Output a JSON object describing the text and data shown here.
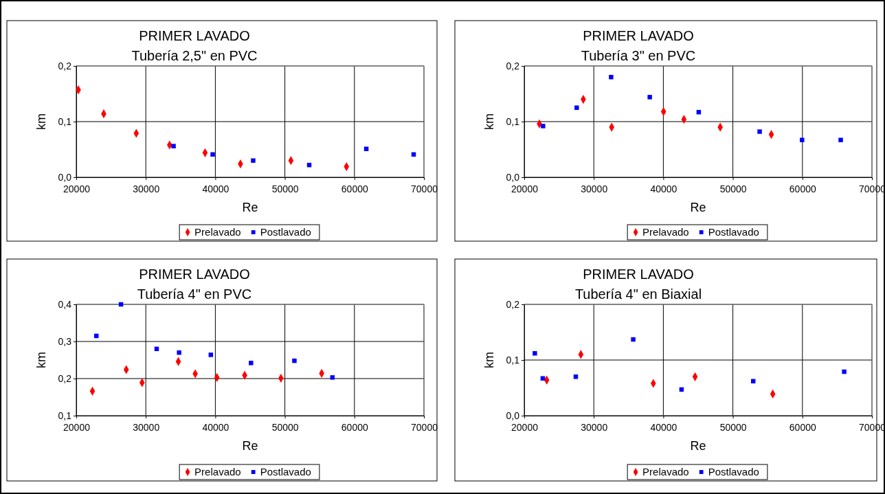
{
  "chart_data": [
    {
      "type": "scatter",
      "title": "PRIMER LAVADO",
      "subtitle": "Tubería 2,5\" en PVC",
      "xlabel": "Re",
      "ylabel": "km",
      "xlim": [
        20000,
        70000
      ],
      "xticks": [
        20000,
        30000,
        40000,
        50000,
        60000,
        70000
      ],
      "ylim": [
        0,
        0.2
      ],
      "yticks": [
        {
          "value": 0,
          "label": "0,0"
        },
        {
          "value": 0.1,
          "label": "0,1"
        },
        {
          "value": 0.2,
          "label": "0,2"
        }
      ],
      "grid": true,
      "legend": "bottom",
      "series": [
        {
          "name": "Prelavado",
          "color": "#ff0000",
          "marker": "diamond",
          "x": [
            20300,
            23950,
            28630,
            33420,
            38520,
            43610,
            50870,
            58860
          ],
          "values": [
            0.157,
            0.114,
            0.079,
            0.058,
            0.044,
            0.024,
            0.03,
            0.019
          ]
        },
        {
          "name": "Postlavado",
          "color": "#0000ff",
          "marker": "square",
          "x": [
            33990,
            39620,
            45440,
            53500,
            61710,
            68520
          ],
          "values": [
            0.056,
            0.041,
            0.03,
            0.022,
            0.051,
            0.041
          ]
        }
      ]
    },
    {
      "type": "scatter",
      "title": "PRIMER LAVADO",
      "subtitle": "Tubería 3\" en PVC",
      "xlabel": "Re",
      "ylabel": "km",
      "xlim": [
        20000,
        70000
      ],
      "xticks": [
        20000,
        30000,
        40000,
        50000,
        60000,
        70000
      ],
      "ylim": [
        0,
        0.2
      ],
      "yticks": [
        {
          "value": 0,
          "label": "0,0"
        },
        {
          "value": 0.1,
          "label": "0,1"
        },
        {
          "value": 0.2,
          "label": "0,2"
        }
      ],
      "grid": true,
      "legend": "bottom",
      "series": [
        {
          "name": "Prelavado",
          "color": "#ff0000",
          "marker": "diamond",
          "x": [
            22170,
            28490,
            32570,
            40030,
            42960,
            48180,
            55530
          ],
          "values": [
            0.096,
            0.14,
            0.09,
            0.118,
            0.104,
            0.09,
            0.077
          ]
        },
        {
          "name": "Postlavado",
          "color": "#0000ff",
          "marker": "square",
          "x": [
            22700,
            27540,
            32490,
            38050,
            45090,
            53850,
            59950,
            65510
          ],
          "values": [
            0.092,
            0.125,
            0.18,
            0.144,
            0.117,
            0.082,
            0.067,
            0.067
          ]
        }
      ]
    },
    {
      "type": "scatter",
      "title": "PRIMER LAVADO",
      "subtitle": "Tubería 4\" en PVC",
      "xlabel": "Re",
      "ylabel": "km",
      "xlim": [
        20000,
        70000
      ],
      "xticks": [
        20000,
        30000,
        40000,
        50000,
        60000,
        70000
      ],
      "ylim": [
        0.1,
        0.4
      ],
      "yticks": [
        {
          "value": 0.1,
          "label": "0,1"
        },
        {
          "value": 0.2,
          "label": "0,2"
        },
        {
          "value": 0.3,
          "label": "0,3"
        },
        {
          "value": 0.4,
          "label": "0,4"
        }
      ],
      "grid": true,
      "legend": "bottom",
      "series": [
        {
          "name": "Prelavado",
          "color": "#ff0000",
          "marker": "diamond",
          "x": [
            22320,
            27190,
            29470,
            34680,
            37110,
            40230,
            44220,
            49430,
            55290
          ],
          "values": [
            0.166,
            0.224,
            0.189,
            0.246,
            0.213,
            0.203,
            0.209,
            0.201,
            0.214
          ]
        },
        {
          "name": "Postlavado",
          "color": "#0000ff",
          "marker": "square",
          "x": [
            22890,
            26430,
            31560,
            34790,
            39350,
            45130,
            51370,
            56840
          ],
          "values": [
            0.315,
            0.4,
            0.28,
            0.27,
            0.264,
            0.242,
            0.248,
            0.203
          ]
        }
      ]
    },
    {
      "type": "scatter",
      "title": "PRIMER LAVADO",
      "subtitle": "Tubería 4\" en Biaxial",
      "xlabel": "Re",
      "ylabel": "km",
      "xlim": [
        20000,
        70000
      ],
      "xticks": [
        20000,
        30000,
        40000,
        50000,
        60000,
        70000
      ],
      "ylim": [
        0,
        0.2
      ],
      "yticks": [
        {
          "value": 0,
          "label": "0,0"
        },
        {
          "value": 0.1,
          "label": "0,1"
        },
        {
          "value": 0.2,
          "label": "0,2"
        }
      ],
      "grid": true,
      "legend": "bottom",
      "series": [
        {
          "name": "Prelavado",
          "color": "#ff0000",
          "marker": "diamond",
          "x": [
            23230,
            28140,
            38560,
            44560,
            55740
          ],
          "values": [
            0.064,
            0.11,
            0.058,
            0.07,
            0.039
          ]
        },
        {
          "name": "Postlavado",
          "color": "#0000ff",
          "marker": "square",
          "x": [
            21520,
            22660,
            27410,
            35670,
            42620,
            52930,
            66010
          ],
          "values": [
            0.112,
            0.067,
            0.07,
            0.137,
            0.047,
            0.062,
            0.079
          ]
        }
      ]
    }
  ]
}
